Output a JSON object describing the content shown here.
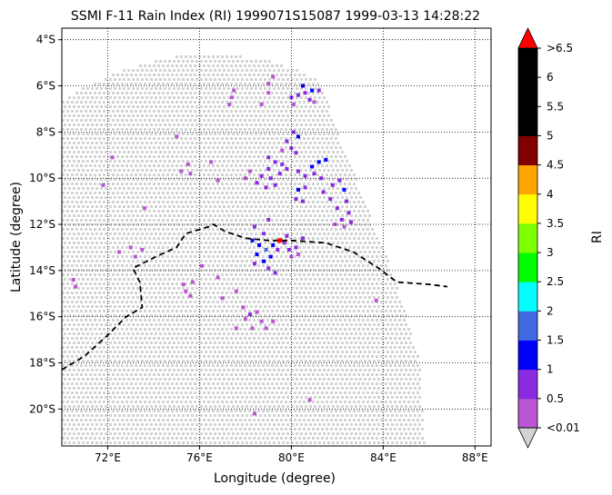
{
  "title": "SSMI F-11 Rain Index (RI) 1999071S15087 1999-03-13 14:28:22",
  "map": {
    "xlabel": "Longitude (degree)",
    "ylabel": "Latitude (degree)",
    "lon_range": [
      70.0,
      88.7
    ],
    "lat_range": [
      -21.6,
      -3.5
    ],
    "x_ticks": [
      {
        "value": 72,
        "label": "72°E"
      },
      {
        "value": 76,
        "label": "76°E"
      },
      {
        "value": 80,
        "label": "80°E"
      },
      {
        "value": 84,
        "label": "84°E"
      },
      {
        "value": 88,
        "label": "88°E"
      }
    ],
    "y_ticks": [
      {
        "value": -4,
        "label": "4°S"
      },
      {
        "value": -6,
        "label": "6°S"
      },
      {
        "value": -8,
        "label": "8°S"
      },
      {
        "value": -10,
        "label": "10°S"
      },
      {
        "value": -12,
        "label": "12°S"
      },
      {
        "value": -14,
        "label": "14°S"
      },
      {
        "value": -16,
        "label": "16°S"
      },
      {
        "value": -18,
        "label": "18°S"
      },
      {
        "value": -20,
        "label": "20°S"
      }
    ],
    "grid": "dotted",
    "swath_color": "#d3d3d3",
    "swath_outline": [
      [
        70.0,
        -6.6
      ],
      [
        71.3,
        -5.9
      ],
      [
        73.0,
        -5.2
      ],
      [
        75.0,
        -4.7
      ],
      [
        77.0,
        -4.6
      ],
      [
        79.0,
        -4.9
      ],
      [
        80.5,
        -5.4
      ],
      [
        81.3,
        -5.8
      ],
      [
        82.0,
        -8.0
      ],
      [
        83.0,
        -10.5
      ],
      [
        84.0,
        -13.0
      ],
      [
        85.0,
        -15.8
      ],
      [
        85.6,
        -18.0
      ],
      [
        85.8,
        -21.6
      ],
      [
        70.0,
        -21.6
      ]
    ],
    "storm_track": {
      "color": "#000000",
      "style": "dashed",
      "points": [
        [
          70.0,
          -18.3
        ],
        [
          71.0,
          -17.7
        ],
        [
          72.0,
          -16.8
        ],
        [
          72.8,
          -16.0
        ],
        [
          73.5,
          -15.6
        ],
        [
          73.4,
          -14.5
        ],
        [
          73.1,
          -13.9
        ],
        [
          74.1,
          -13.4
        ],
        [
          75.0,
          -13.0
        ],
        [
          75.4,
          -12.4
        ],
        [
          76.4,
          -12.1
        ],
        [
          76.6,
          -12.0
        ],
        [
          77.1,
          -12.3
        ],
        [
          78.0,
          -12.6
        ],
        [
          79.0,
          -12.7
        ],
        [
          80.0,
          -12.7
        ],
        [
          81.5,
          -12.8
        ],
        [
          82.7,
          -13.2
        ],
        [
          83.8,
          -13.9
        ],
        [
          84.6,
          -14.5
        ],
        [
          86.0,
          -14.6
        ],
        [
          86.8,
          -14.7
        ]
      ]
    },
    "storm_center": {
      "lon": 79.5,
      "lat": -12.7,
      "color": "#ff0000"
    },
    "rain_points": [
      [
        77.4,
        -6.5,
        0.3
      ],
      [
        77.5,
        -6.2,
        0.4
      ],
      [
        77.3,
        -6.8,
        0.3
      ],
      [
        79.0,
        -5.9,
        0.4
      ],
      [
        79.0,
        -6.3,
        0.3
      ],
      [
        78.7,
        -6.8,
        0.3
      ],
      [
        79.2,
        -5.6,
        0.4
      ],
      [
        80.0,
        -6.5,
        0.6
      ],
      [
        80.3,
        -6.4,
        0.7
      ],
      [
        80.6,
        -6.3,
        0.8
      ],
      [
        80.9,
        -6.2,
        1.0
      ],
      [
        81.2,
        -6.2,
        0.8
      ],
      [
        80.5,
        -6.0,
        1.2
      ],
      [
        80.8,
        -6.6,
        0.6
      ],
      [
        80.1,
        -6.8,
        0.4
      ],
      [
        81.0,
        -6.7,
        0.4
      ],
      [
        80.1,
        -8.0,
        0.7
      ],
      [
        80.3,
        -8.2,
        1.0
      ],
      [
        79.8,
        -8.4,
        0.6
      ],
      [
        80.0,
        -8.7,
        0.8
      ],
      [
        79.6,
        -8.8,
        0.4
      ],
      [
        80.2,
        -8.9,
        0.5
      ],
      [
        79.0,
        -9.1,
        0.6
      ],
      [
        79.3,
        -9.3,
        0.7
      ],
      [
        79.6,
        -9.4,
        0.6
      ],
      [
        79.0,
        -9.6,
        0.5
      ],
      [
        78.7,
        -9.9,
        0.6
      ],
      [
        79.1,
        -10.0,
        0.7
      ],
      [
        79.5,
        -9.8,
        0.6
      ],
      [
        79.8,
        -9.6,
        0.8
      ],
      [
        78.5,
        -10.2,
        0.5
      ],
      [
        78.9,
        -10.4,
        0.6
      ],
      [
        79.3,
        -10.3,
        0.5
      ],
      [
        78.2,
        -9.7,
        0.4
      ],
      [
        78.0,
        -10.0,
        0.3
      ],
      [
        80.3,
        -9.7,
        0.7
      ],
      [
        80.6,
        -9.9,
        0.8
      ],
      [
        80.9,
        -9.5,
        1.0
      ],
      [
        81.2,
        -9.3,
        1.2
      ],
      [
        81.5,
        -9.2,
        1.0
      ],
      [
        81.0,
        -9.8,
        0.9
      ],
      [
        81.3,
        -10.0,
        0.8
      ],
      [
        80.6,
        -10.4,
        0.9
      ],
      [
        80.3,
        -10.5,
        1.1
      ],
      [
        80.2,
        -10.9,
        0.6
      ],
      [
        80.5,
        -11.0,
        0.7
      ],
      [
        81.4,
        -10.6,
        0.6
      ],
      [
        81.8,
        -10.3,
        0.6
      ],
      [
        82.1,
        -10.1,
        0.9
      ],
      [
        82.3,
        -10.5,
        1.1
      ],
      [
        82.4,
        -11.0,
        0.7
      ],
      [
        82.5,
        -11.5,
        0.6
      ],
      [
        82.6,
        -11.9,
        0.5
      ],
      [
        82.0,
        -11.3,
        0.6
      ],
      [
        82.2,
        -11.8,
        0.5
      ],
      [
        81.9,
        -12.0,
        0.4
      ],
      [
        81.7,
        -10.9,
        0.5
      ],
      [
        82.3,
        -12.1,
        0.4
      ],
      [
        78.4,
        -12.1,
        0.6
      ],
      [
        78.8,
        -12.4,
        0.7
      ],
      [
        79.0,
        -11.8,
        0.5
      ],
      [
        78.3,
        -12.7,
        1.1
      ],
      [
        78.6,
        -12.9,
        1.4
      ],
      [
        78.9,
        -13.1,
        1.6
      ],
      [
        79.2,
        -12.9,
        1.2
      ],
      [
        78.5,
        -13.3,
        1.3
      ],
      [
        78.8,
        -13.6,
        1.1
      ],
      [
        79.1,
        -13.4,
        1.0
      ],
      [
        79.4,
        -13.1,
        0.8
      ],
      [
        79.0,
        -13.9,
        0.7
      ],
      [
        79.3,
        -14.1,
        0.6
      ],
      [
        78.4,
        -13.7,
        0.7
      ],
      [
        79.7,
        -12.8,
        0.6
      ],
      [
        79.9,
        -13.1,
        0.5
      ],
      [
        80.2,
        -13.0,
        0.5
      ],
      [
        80.5,
        -12.6,
        0.6
      ],
      [
        79.8,
        -12.5,
        0.7
      ],
      [
        80.0,
        -13.4,
        0.4
      ],
      [
        80.3,
        -13.3,
        0.4
      ],
      [
        72.5,
        -13.2,
        0.3
      ],
      [
        73.0,
        -13.0,
        0.3
      ],
      [
        73.2,
        -13.4,
        0.4
      ],
      [
        73.5,
        -13.1,
        0.3
      ],
      [
        70.5,
        -14.4,
        0.3
      ],
      [
        70.6,
        -14.7,
        0.3
      ],
      [
        75.3,
        -14.6,
        0.3
      ],
      [
        75.4,
        -14.9,
        0.3
      ],
      [
        75.6,
        -15.1,
        0.4
      ],
      [
        75.7,
        -14.5,
        0.3
      ],
      [
        76.8,
        -14.3,
        0.3
      ],
      [
        77.6,
        -14.9,
        0.3
      ],
      [
        77.0,
        -15.2,
        0.3
      ],
      [
        77.9,
        -15.6,
        0.4
      ],
      [
        78.2,
        -15.9,
        0.5
      ],
      [
        78.0,
        -16.1,
        0.4
      ],
      [
        78.5,
        -15.8,
        0.4
      ],
      [
        78.7,
        -16.2,
        0.3
      ],
      [
        78.9,
        -16.5,
        0.3
      ],
      [
        78.3,
        -16.5,
        0.4
      ],
      [
        79.2,
        -16.2,
        0.3
      ],
      [
        75.5,
        -9.4,
        0.3
      ],
      [
        75.2,
        -9.7,
        0.3
      ],
      [
        75.6,
        -9.8,
        0.3
      ],
      [
        76.5,
        -9.3,
        0.3
      ],
      [
        76.8,
        -10.1,
        0.3
      ],
      [
        71.8,
        -10.3,
        0.3
      ],
      [
        72.2,
        -9.1,
        0.3
      ],
      [
        73.6,
        -11.3,
        0.3
      ],
      [
        75.0,
        -8.2,
        0.3
      ],
      [
        78.4,
        -20.2,
        0.3
      ],
      [
        80.8,
        -19.6,
        0.3
      ],
      [
        83.7,
        -15.3,
        0.3
      ],
      [
        77.6,
        -16.5,
        0.3
      ],
      [
        76.1,
        -13.8,
        0.3
      ]
    ]
  },
  "colorbar": {
    "label": "RI",
    "tick_labels": [
      "<0.01",
      "0.5",
      "1",
      "1.5",
      "2",
      "2.5",
      "3",
      "3.5",
      "4",
      "4.5",
      "5",
      "5.5",
      "6",
      ">6.5"
    ],
    "levels": [
      0.01,
      0.5,
      1,
      1.5,
      2,
      2.5,
      3,
      3.5,
      4,
      4.5,
      5,
      5.5,
      6,
      6.5
    ],
    "colors": [
      "#ba55d3",
      "#8a2be2",
      "#0000ff",
      "#4169e1",
      "#00ffff",
      "#00ff00",
      "#7fff00",
      "#ffff00",
      "#ffa500",
      "#800000",
      "#000000",
      "#000000",
      "#000000"
    ],
    "under_color": "#d3d3d3",
    "over_color": "#ff0000"
  }
}
